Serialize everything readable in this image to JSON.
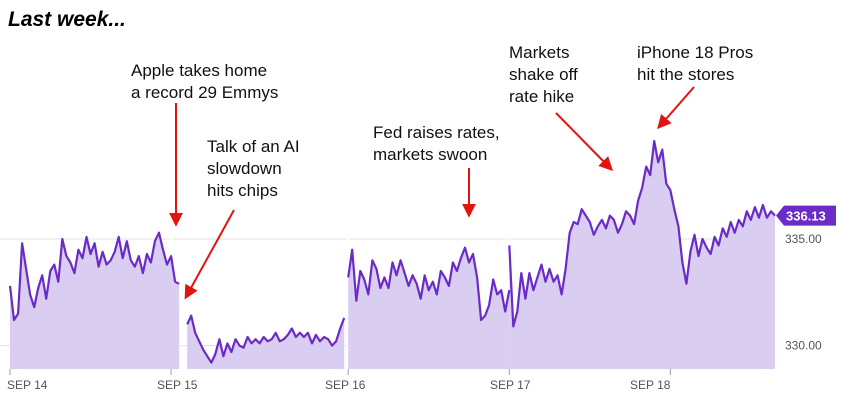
{
  "title": "Last week...",
  "annotations": [
    {
      "text": "Apple takes home\na record 29 Emmys"
    },
    {
      "text": "Talk of an AI\nslowdown\nhits chips"
    },
    {
      "text": "Fed raises rates,\nmarkets swoon"
    },
    {
      "text": "Markets\nshake off\nrate hike"
    },
    {
      "text": "iPhone 18 Pros\nhit the stores"
    }
  ],
  "colors": {
    "line": "#6a2bc9",
    "fill": "#d9cdf1",
    "grid": "#e3e3e3",
    "arrow": "#e3130f",
    "badge": "#6a2bc9"
  },
  "chart_data": {
    "type": "area",
    "title": "Last week...",
    "xlabel": "",
    "ylabel": "",
    "x_tick_labels": [
      "SEP 14",
      "SEP 15",
      "SEP 16",
      "SEP 17",
      "SEP 18"
    ],
    "y_ticks": [
      330.0,
      335.0
    ],
    "y_tick_labels": [
      "330.00",
      "335.00"
    ],
    "ylim": [
      328.9,
      340.4
    ],
    "last_value_label": "336.13",
    "grid": true,
    "series": [
      {
        "segments": [
          [
            [
              0.0,
              332.8
            ],
            [
              0.05,
              331.2
            ],
            [
              0.1,
              331.5
            ],
            [
              0.15,
              334.8
            ],
            [
              0.2,
              333.6
            ],
            [
              0.25,
              332.4
            ],
            [
              0.3,
              331.8
            ],
            [
              0.35,
              332.7
            ],
            [
              0.4,
              333.3
            ],
            [
              0.45,
              332.2
            ],
            [
              0.5,
              333.5
            ],
            [
              0.55,
              333.8
            ],
            [
              0.6,
              333.0
            ],
            [
              0.65,
              335.0
            ],
            [
              0.7,
              334.2
            ],
            [
              0.75,
              333.9
            ],
            [
              0.8,
              333.4
            ],
            [
              0.85,
              334.5
            ],
            [
              0.9,
              334.1
            ],
            [
              0.95,
              335.1
            ],
            [
              1.0,
              334.3
            ],
            [
              1.05,
              334.8
            ],
            [
              1.1,
              333.7
            ],
            [
              1.15,
              334.4
            ],
            [
              1.2,
              333.8
            ],
            [
              1.25,
              334.0
            ],
            [
              1.3,
              334.4
            ],
            [
              1.35,
              335.1
            ],
            [
              1.4,
              334.1
            ],
            [
              1.45,
              334.9
            ],
            [
              1.5,
              334.0
            ],
            [
              1.55,
              333.7
            ],
            [
              1.6,
              334.2
            ],
            [
              1.65,
              333.4
            ],
            [
              1.7,
              334.3
            ],
            [
              1.75,
              333.9
            ],
            [
              1.8,
              334.9
            ],
            [
              1.85,
              335.3
            ],
            [
              1.9,
              334.5
            ],
            [
              1.95,
              333.8
            ],
            [
              2.0,
              334.2
            ],
            [
              2.05,
              333.0
            ],
            [
              2.1,
              332.9
            ]
          ],
          [
            [
              2.2,
              331.0
            ],
            [
              2.25,
              331.4
            ],
            [
              2.3,
              330.6
            ],
            [
              2.35,
              330.2
            ],
            [
              2.4,
              329.8
            ],
            [
              2.45,
              329.5
            ],
            [
              2.5,
              329.2
            ],
            [
              2.55,
              329.6
            ],
            [
              2.6,
              330.3
            ],
            [
              2.65,
              329.5
            ],
            [
              2.7,
              330.1
            ],
            [
              2.75,
              329.7
            ],
            [
              2.8,
              330.3
            ],
            [
              2.85,
              330.0
            ],
            [
              2.9,
              329.9
            ],
            [
              2.95,
              330.4
            ],
            [
              3.0,
              330.1
            ],
            [
              3.05,
              330.3
            ],
            [
              3.1,
              330.1
            ],
            [
              3.15,
              330.4
            ],
            [
              3.2,
              330.2
            ],
            [
              3.25,
              330.3
            ],
            [
              3.3,
              330.6
            ],
            [
              3.35,
              330.2
            ],
            [
              3.4,
              330.3
            ],
            [
              3.45,
              330.5
            ],
            [
              3.5,
              330.8
            ],
            [
              3.55,
              330.4
            ],
            [
              3.6,
              330.6
            ],
            [
              3.65,
              330.4
            ],
            [
              3.7,
              330.6
            ],
            [
              3.75,
              330.1
            ],
            [
              3.8,
              330.5
            ],
            [
              3.85,
              330.2
            ],
            [
              3.9,
              330.4
            ],
            [
              3.95,
              330.3
            ],
            [
              4.0,
              330.0
            ],
            [
              4.05,
              330.2
            ],
            [
              4.1,
              330.8
            ],
            [
              4.15,
              331.3
            ]
          ],
          [
            [
              4.2,
              333.2
            ],
            [
              4.25,
              334.5
            ],
            [
              4.3,
              332.1
            ],
            [
              4.35,
              333.5
            ],
            [
              4.4,
              333.1
            ],
            [
              4.45,
              332.4
            ],
            [
              4.5,
              334.0
            ],
            [
              4.55,
              333.6
            ],
            [
              4.6,
              332.7
            ],
            [
              4.65,
              333.2
            ],
            [
              4.7,
              332.7
            ],
            [
              4.75,
              333.9
            ],
            [
              4.8,
              333.3
            ],
            [
              4.85,
              334.0
            ],
            [
              4.9,
              333.4
            ],
            [
              4.95,
              332.8
            ],
            [
              5.0,
              333.3
            ],
            [
              5.05,
              332.9
            ],
            [
              5.1,
              332.2
            ],
            [
              5.15,
              333.3
            ],
            [
              5.2,
              332.6
            ],
            [
              5.25,
              333.0
            ],
            [
              5.3,
              332.4
            ],
            [
              5.35,
              333.5
            ],
            [
              5.4,
              333.2
            ],
            [
              5.45,
              332.8
            ],
            [
              5.5,
              333.9
            ],
            [
              5.55,
              333.5
            ],
            [
              5.6,
              334.1
            ],
            [
              5.65,
              334.6
            ],
            [
              5.7,
              333.9
            ],
            [
              5.75,
              334.3
            ],
            [
              5.8,
              333.2
            ],
            [
              5.85,
              331.2
            ],
            [
              5.9,
              331.4
            ],
            [
              5.95,
              331.9
            ],
            [
              6.0,
              333.1
            ],
            [
              6.05,
              332.4
            ],
            [
              6.1,
              332.6
            ],
            [
              6.15,
              331.6
            ],
            [
              6.2,
              332.6
            ]
          ],
          [
            [
              6.2,
              334.7
            ],
            [
              6.25,
              330.9
            ],
            [
              6.3,
              331.6
            ],
            [
              6.35,
              333.4
            ],
            [
              6.4,
              332.2
            ],
            [
              6.45,
              333.4
            ],
            [
              6.5,
              332.6
            ],
            [
              6.55,
              333.2
            ],
            [
              6.6,
              333.8
            ],
            [
              6.65,
              333.0
            ],
            [
              6.7,
              333.6
            ],
            [
              6.75,
              333.0
            ],
            [
              6.8,
              333.3
            ],
            [
              6.85,
              332.4
            ],
            [
              6.9,
              333.6
            ],
            [
              6.95,
              335.3
            ],
            [
              7.0,
              335.8
            ],
            [
              7.05,
              335.7
            ],
            [
              7.1,
              336.4
            ],
            [
              7.15,
              336.1
            ],
            [
              7.2,
              335.8
            ],
            [
              7.25,
              335.2
            ],
            [
              7.3,
              335.6
            ],
            [
              7.35,
              335.9
            ],
            [
              7.4,
              335.5
            ],
            [
              7.45,
              336.1
            ],
            [
              7.5,
              335.9
            ],
            [
              7.55,
              335.3
            ],
            [
              7.6,
              335.7
            ],
            [
              7.65,
              336.3
            ],
            [
              7.7,
              336.1
            ],
            [
              7.75,
              335.7
            ],
            [
              7.8,
              336.8
            ],
            [
              7.85,
              337.4
            ],
            [
              7.9,
              338.4
            ],
            [
              7.95,
              338.0
            ],
            [
              8.0,
              339.6
            ],
            [
              8.05,
              338.6
            ],
            [
              8.1,
              339.2
            ],
            [
              8.15,
              337.6
            ],
            [
              8.2,
              337.3
            ],
            [
              8.25,
              336.4
            ],
            [
              8.3,
              335.6
            ],
            [
              8.35,
              333.9
            ],
            [
              8.4,
              332.9
            ],
            [
              8.45,
              334.4
            ],
            [
              8.5,
              335.2
            ],
            [
              8.55,
              334.2
            ],
            [
              8.6,
              335.0
            ],
            [
              8.65,
              334.6
            ],
            [
              8.7,
              334.3
            ],
            [
              8.75,
              335.1
            ],
            [
              8.8,
              334.7
            ],
            [
              8.85,
              335.5
            ],
            [
              8.9,
              335.1
            ],
            [
              8.95,
              335.8
            ],
            [
              9.0,
              335.3
            ],
            [
              9.05,
              335.9
            ],
            [
              9.1,
              335.6
            ],
            [
              9.15,
              336.3
            ],
            [
              9.2,
              335.9
            ],
            [
              9.25,
              336.5
            ],
            [
              9.3,
              336.0
            ],
            [
              9.35,
              336.6
            ],
            [
              9.4,
              336.0
            ],
            [
              9.45,
              336.3
            ],
            [
              9.5,
              336.1
            ]
          ]
        ]
      }
    ]
  }
}
